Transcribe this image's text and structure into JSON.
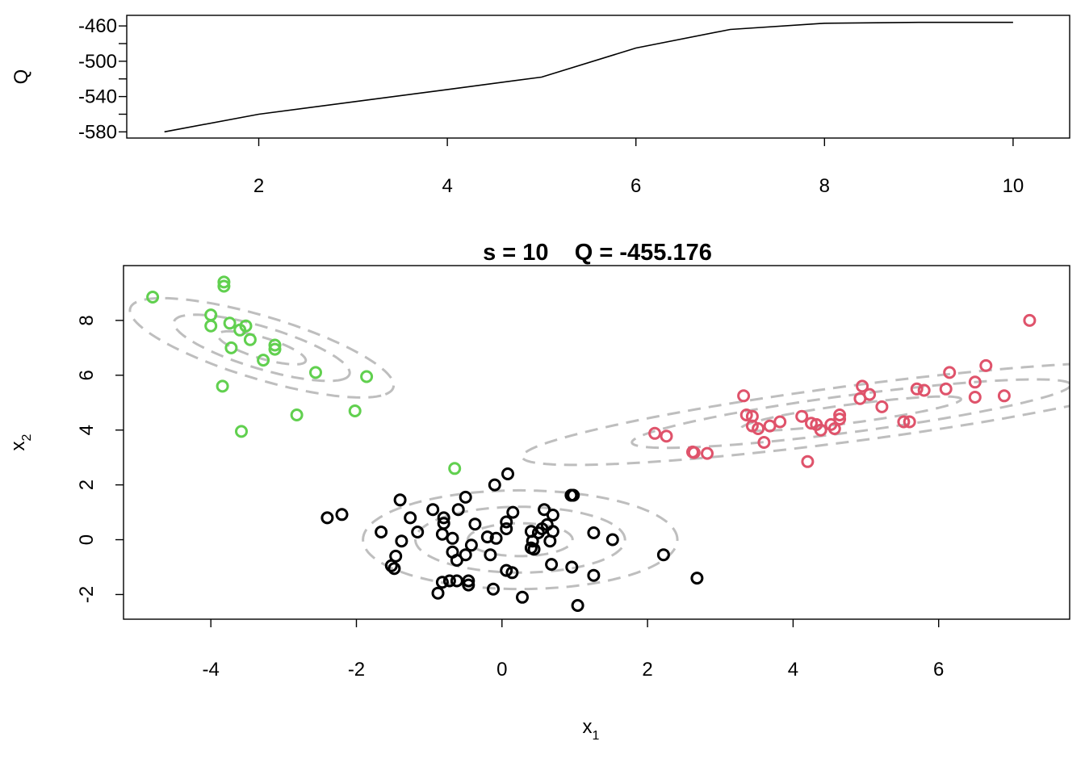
{
  "chart_data": [
    {
      "type": "line",
      "title": "",
      "xlabel": "",
      "ylabel": "Q",
      "x": [
        1,
        2,
        3,
        4,
        5,
        6,
        7,
        8,
        9,
        10
      ],
      "y": [
        -580,
        -560,
        -546,
        -532,
        -518,
        -485,
        -464,
        -457,
        -456,
        -456
      ],
      "xlim": [
        0.6,
        10.6
      ],
      "ylim": [
        -587,
        -448
      ],
      "xticks": [
        "2",
        "4",
        "6",
        "8",
        "10"
      ],
      "yticks": [
        "-460",
        "-500",
        "-540",
        "-580"
      ],
      "line_color": "#000000",
      "grid": false
    },
    {
      "type": "scatter",
      "title": "s = 10    Q = -455.176",
      "xlabel": "x",
      "xlabel_sub": "1",
      "ylabel": "x",
      "ylabel_sub": "2",
      "xlim": [
        -5.2,
        7.8
      ],
      "ylim": [
        -2.9,
        10.0
      ],
      "xticks": [
        "-4",
        "-2",
        "0",
        "2",
        "4",
        "6"
      ],
      "yticks": [
        "-2",
        "0",
        "2",
        "4",
        "6",
        "8"
      ],
      "grid": false,
      "contour_color": "#bebebe",
      "ellipses": [
        {
          "name": "green",
          "cx": -3.3,
          "cy": 7.0,
          "r": [
            1.0,
            2.0,
            3.0
          ],
          "a": 0.8,
          "b": 0.3,
          "rot_deg": -45
        },
        {
          "name": "black",
          "cx": 0.25,
          "cy": 0.0,
          "r": [
            1.0,
            2.0,
            3.0
          ],
          "a": 0.72,
          "b": 0.6,
          "rot_deg": 0
        },
        {
          "name": "red",
          "cx": 4.8,
          "cy": 4.6,
          "r": [
            1.0,
            2.0,
            3.0
          ],
          "a": 1.6,
          "b": 0.32,
          "rot_deg": 20
        }
      ],
      "series": [
        {
          "color": "#61d04f",
          "points": [
            [
              -4.8,
              8.85
            ],
            [
              -3.82,
              9.4
            ],
            [
              -3.82,
              9.25
            ],
            [
              -4.0,
              8.2
            ],
            [
              -4.0,
              7.8
            ],
            [
              -3.74,
              7.9
            ],
            [
              -3.6,
              7.65
            ],
            [
              -3.52,
              7.8
            ],
            [
              -3.46,
              7.3
            ],
            [
              -3.12,
              7.1
            ],
            [
              -3.12,
              6.95
            ],
            [
              -3.72,
              7.0
            ],
            [
              -3.28,
              6.55
            ],
            [
              -2.56,
              6.1
            ],
            [
              -1.86,
              5.95
            ],
            [
              -3.84,
              5.6
            ],
            [
              -2.82,
              4.55
            ],
            [
              -2.02,
              4.7
            ],
            [
              -3.58,
              3.95
            ],
            [
              -0.65,
              2.6
            ]
          ]
        },
        {
          "color": "#df536b",
          "points": [
            [
              7.25,
              8.0
            ],
            [
              6.65,
              6.35
            ],
            [
              6.15,
              6.1
            ],
            [
              6.5,
              5.75
            ],
            [
              4.95,
              5.6
            ],
            [
              5.7,
              5.5
            ],
            [
              5.8,
              5.45
            ],
            [
              5.05,
              5.3
            ],
            [
              6.1,
              5.5
            ],
            [
              6.5,
              5.2
            ],
            [
              6.9,
              5.25
            ],
            [
              4.92,
              5.15
            ],
            [
              3.32,
              5.25
            ],
            [
              5.22,
              4.85
            ],
            [
              3.36,
              4.55
            ],
            [
              3.44,
              4.5
            ],
            [
              4.12,
              4.5
            ],
            [
              4.64,
              4.55
            ],
            [
              4.64,
              4.4
            ],
            [
              3.82,
              4.3
            ],
            [
              3.68,
              4.15
            ],
            [
              3.44,
              4.15
            ],
            [
              3.52,
              4.05
            ],
            [
              4.25,
              4.25
            ],
            [
              4.32,
              4.2
            ],
            [
              4.52,
              4.2
            ],
            [
              4.57,
              4.05
            ],
            [
              4.38,
              4.0
            ],
            [
              5.52,
              4.3
            ],
            [
              5.6,
              4.3
            ],
            [
              2.1,
              3.88
            ],
            [
              2.26,
              3.78
            ],
            [
              3.6,
              3.55
            ],
            [
              2.62,
              3.2
            ],
            [
              2.64,
              3.18
            ],
            [
              2.82,
              3.15
            ],
            [
              4.2,
              2.85
            ]
          ]
        },
        {
          "color": "#000000",
          "points": [
            [
              0.08,
              2.4
            ],
            [
              -0.1,
              2.0
            ],
            [
              0.95,
              1.62
            ],
            [
              0.98,
              1.62
            ],
            [
              -0.5,
              1.55
            ],
            [
              -1.4,
              1.45
            ],
            [
              -0.6,
              1.1
            ],
            [
              -0.95,
              1.1
            ],
            [
              0.58,
              1.1
            ],
            [
              0.7,
              0.9
            ],
            [
              0.15,
              1.0
            ],
            [
              -0.8,
              0.8
            ],
            [
              -1.26,
              0.8
            ],
            [
              -2.2,
              0.92
            ],
            [
              -2.4,
              0.8
            ],
            [
              0.06,
              0.65
            ],
            [
              -0.8,
              0.6
            ],
            [
              -0.37,
              0.57
            ],
            [
              0.62,
              0.55
            ],
            [
              0.55,
              0.4
            ],
            [
              0.06,
              0.4
            ],
            [
              0.4,
              0.3
            ],
            [
              0.5,
              0.25
            ],
            [
              0.7,
              0.3
            ],
            [
              1.26,
              0.25
            ],
            [
              -1.66,
              0.28
            ],
            [
              -1.16,
              0.28
            ],
            [
              -0.82,
              0.2
            ],
            [
              -0.2,
              0.1
            ],
            [
              -0.68,
              0.05
            ],
            [
              -0.08,
              0.05
            ],
            [
              1.52,
              0.0
            ],
            [
              -1.38,
              -0.05
            ],
            [
              0.42,
              -0.05
            ],
            [
              0.66,
              -0.05
            ],
            [
              -0.42,
              -0.2
            ],
            [
              0.4,
              -0.3
            ],
            [
              0.44,
              -0.35
            ],
            [
              -0.68,
              -0.45
            ],
            [
              -0.5,
              -0.55
            ],
            [
              -0.16,
              -0.55
            ],
            [
              -1.46,
              -0.6
            ],
            [
              2.22,
              -0.55
            ],
            [
              -0.62,
              -0.75
            ],
            [
              -1.52,
              -0.95
            ],
            [
              -1.48,
              -1.05
            ],
            [
              0.96,
              -1.0
            ],
            [
              0.68,
              -0.9
            ],
            [
              0.06,
              -1.12
            ],
            [
              0.14,
              -1.2
            ],
            [
              1.26,
              -1.3
            ],
            [
              -0.82,
              -1.55
            ],
            [
              -0.72,
              -1.5
            ],
            [
              -0.62,
              -1.5
            ],
            [
              -0.46,
              -1.5
            ],
            [
              -0.46,
              -1.65
            ],
            [
              2.68,
              -1.4
            ],
            [
              -0.12,
              -1.8
            ],
            [
              -0.88,
              -1.95
            ],
            [
              0.28,
              -2.1
            ],
            [
              1.04,
              -2.4
            ]
          ]
        }
      ]
    }
  ]
}
